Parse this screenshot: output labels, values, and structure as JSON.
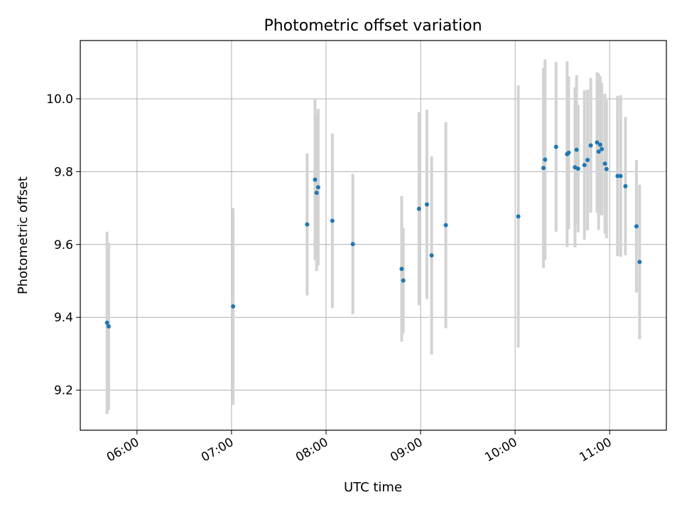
{
  "chart_data": {
    "type": "scatter",
    "title": "Photometric offset variation",
    "xlabel": "UTC time",
    "ylabel": "Photometric offset",
    "x_axis": "time",
    "xlim": [
      "05:24",
      "11:36"
    ],
    "ylim": [
      9.09,
      10.16
    ],
    "x_ticks": [
      "06:00",
      "07:00",
      "08:00",
      "09:00",
      "10:00",
      "11:00"
    ],
    "y_ticks": [
      "9.2",
      "9.4",
      "9.6",
      "9.8",
      "10.0"
    ],
    "grid": true,
    "colors": {
      "point": "#1f77b4",
      "errorbar": "#d3d3d3",
      "grid": "#b0b0b0"
    },
    "points": [
      {
        "x": "05:41",
        "y": 9.385,
        "yerr": 0.25
      },
      {
        "x": "05:42",
        "y": 9.375,
        "yerr": 0.23
      },
      {
        "x": "07:01",
        "y": 9.43,
        "yerr": 0.27
      },
      {
        "x": "07:48",
        "y": 9.655,
        "yerr": 0.195
      },
      {
        "x": "07:53",
        "y": 9.778,
        "yerr": 0.22
      },
      {
        "x": "07:54",
        "y": 9.742,
        "yerr": 0.215
      },
      {
        "x": "07:55",
        "y": 9.757,
        "yerr": 0.215
      },
      {
        "x": "08:04",
        "y": 9.665,
        "yerr": 0.24
      },
      {
        "x": "08:17",
        "y": 9.601,
        "yerr": 0.193
      },
      {
        "x": "08:48",
        "y": 9.533,
        "yerr": 0.2
      },
      {
        "x": "08:49",
        "y": 9.501,
        "yerr": 0.145
      },
      {
        "x": "08:59",
        "y": 9.698,
        "yerr": 0.265
      },
      {
        "x": "09:04",
        "y": 9.71,
        "yerr": 0.26
      },
      {
        "x": "09:07",
        "y": 9.57,
        "yerr": 0.272
      },
      {
        "x": "09:16",
        "y": 9.653,
        "yerr": 0.283
      },
      {
        "x": "10:02",
        "y": 9.677,
        "yerr": 0.36
      },
      {
        "x": "10:18",
        "y": 9.81,
        "yerr": 0.275
      },
      {
        "x": "10:19",
        "y": 9.833,
        "yerr": 0.275
      },
      {
        "x": "10:26",
        "y": 9.868,
        "yerr": 0.233
      },
      {
        "x": "10:33",
        "y": 9.848,
        "yerr": 0.255
      },
      {
        "x": "10:34",
        "y": 9.852,
        "yerr": 0.21
      },
      {
        "x": "10:38",
        "y": 9.812,
        "yerr": 0.22
      },
      {
        "x": "10:39",
        "y": 9.86,
        "yerr": 0.205
      },
      {
        "x": "10:40",
        "y": 9.808,
        "yerr": 0.175
      },
      {
        "x": "10:44",
        "y": 9.818,
        "yerr": 0.205
      },
      {
        "x": "10:46",
        "y": 9.832,
        "yerr": 0.193
      },
      {
        "x": "10:48",
        "y": 9.872,
        "yerr": 0.185
      },
      {
        "x": "10:52",
        "y": 9.88,
        "yerr": 0.193
      },
      {
        "x": "10:53",
        "y": 9.855,
        "yerr": 0.215
      },
      {
        "x": "10:54",
        "y": 9.874,
        "yerr": 0.188
      },
      {
        "x": "10:55",
        "y": 9.862,
        "yerr": 0.182
      },
      {
        "x": "10:57",
        "y": 9.822,
        "yerr": 0.192
      },
      {
        "x": "10:58",
        "y": 9.807,
        "yerr": 0.19
      },
      {
        "x": "11:05",
        "y": 9.788,
        "yerr": 0.22
      },
      {
        "x": "11:07",
        "y": 9.788,
        "yerr": 0.222
      },
      {
        "x": "11:10",
        "y": 9.76,
        "yerr": 0.19
      },
      {
        "x": "11:17",
        "y": 9.65,
        "yerr": 0.182
      },
      {
        "x": "11:19",
        "y": 9.552,
        "yerr": 0.212
      }
    ]
  }
}
